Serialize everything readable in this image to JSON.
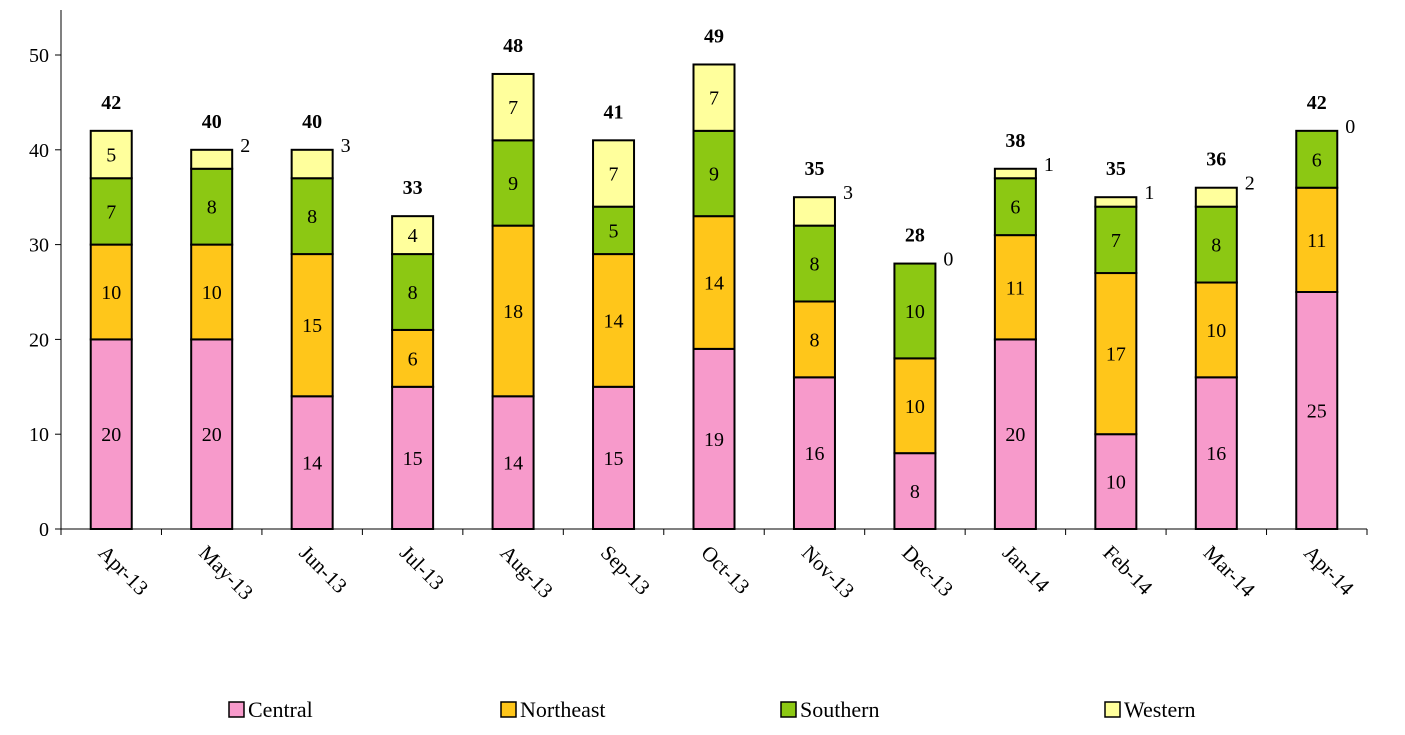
{
  "chart_data": {
    "type": "bar",
    "stacked": true,
    "title": "",
    "xlabel": "",
    "ylabel": "",
    "ylim": [
      0,
      55
    ],
    "yticks": [
      0,
      10,
      20,
      30,
      40,
      50
    ],
    "categories": [
      "Apr-13",
      "May-13",
      "Jun-13",
      "Jul-13",
      "Aug-13",
      "Sep-13",
      "Oct-13",
      "Nov-13",
      "Dec-13",
      "Jan-14",
      "Feb-14",
      "Mar-14",
      "Apr-14"
    ],
    "series": [
      {
        "name": "Central",
        "color": "#F79ACB",
        "values": [
          20,
          20,
          14,
          15,
          14,
          15,
          19,
          16,
          8,
          20,
          10,
          16,
          25
        ]
      },
      {
        "name": "Northeast",
        "color": "#FFC61A",
        "values": [
          10,
          10,
          15,
          6,
          18,
          14,
          14,
          8,
          10,
          11,
          17,
          10,
          11
        ]
      },
      {
        "name": "Southern",
        "color": "#8CC813",
        "values": [
          7,
          8,
          8,
          8,
          9,
          5,
          9,
          8,
          10,
          6,
          7,
          8,
          6
        ]
      },
      {
        "name": "Western",
        "color": "#FFFF9C",
        "values": [
          5,
          2,
          3,
          4,
          7,
          7,
          7,
          3,
          0,
          1,
          1,
          2,
          0
        ]
      }
    ],
    "totals": [
      42,
      40,
      40,
      33,
      48,
      41,
      49,
      35,
      28,
      38,
      35,
      36,
      42
    ],
    "grid": false,
    "legend_position": "bottom"
  }
}
